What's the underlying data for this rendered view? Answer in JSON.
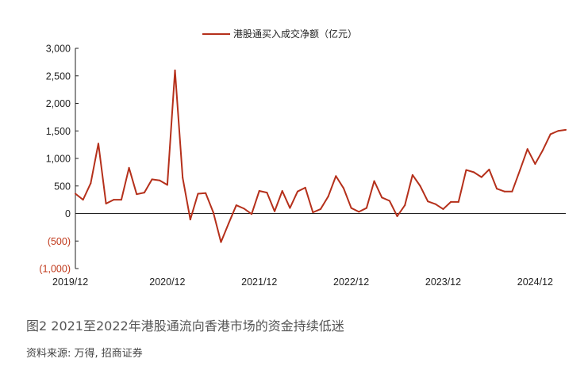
{
  "chart_data": {
    "type": "line",
    "title": "",
    "xlabel": "",
    "ylabel": "",
    "ylim": [
      -1000,
      3000
    ],
    "yticks": [
      3000,
      2500,
      2000,
      1500,
      1000,
      500,
      0,
      -500,
      -1000
    ],
    "ytick_labels": [
      "3,000",
      "2,500",
      "2,000",
      "1,500",
      "1,000",
      "500",
      "0",
      "(500)",
      "(1,000)"
    ],
    "xtick_labels": [
      "2019/12",
      "2020/12",
      "2021/12",
      "2022/12",
      "2023/12",
      "2024/12"
    ],
    "legend_position": "top-center",
    "grid": false,
    "series": [
      {
        "name": "港股通买入成交净额（亿元）",
        "color": "#b5301b",
        "values": [
          360,
          250,
          550,
          1270,
          180,
          250,
          250,
          830,
          350,
          380,
          620,
          600,
          520,
          2600,
          650,
          -110,
          360,
          370,
          20,
          -520,
          -180,
          150,
          90,
          -10,
          410,
          380,
          40,
          410,
          100,
          400,
          470,
          20,
          80,
          310,
          680,
          460,
          100,
          30,
          100,
          590,
          290,
          230,
          -50,
          150,
          700,
          500,
          220,
          170,
          80,
          210,
          210,
          790,
          750,
          660,
          800,
          450,
          400,
          400,
          780,
          1170,
          900,
          1150,
          1440,
          1500,
          1520
        ]
      }
    ]
  },
  "caption": "图2  2021至2022年港股通流向香港市场的资金持续低迷",
  "source": "资料来源: 万得, 招商证券"
}
